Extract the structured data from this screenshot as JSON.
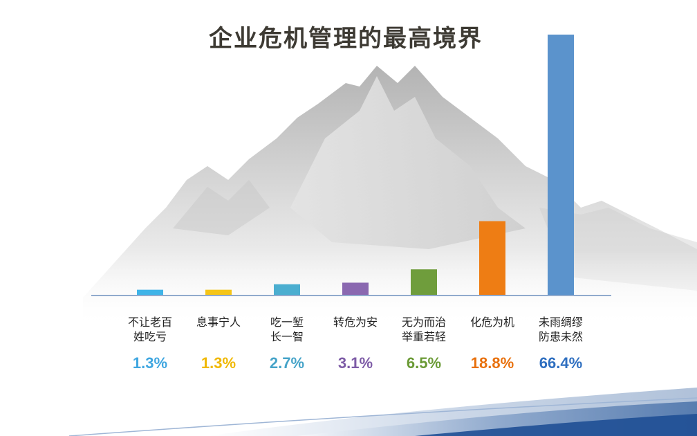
{
  "title": "企业危机管理的最高境界",
  "chart_data": {
    "type": "bar",
    "title": "企业危机管理的最高境界",
    "categories": [
      "不让老百\n姓吃亏",
      "息事宁人",
      "吃一堑\n长一智",
      "转危为安",
      "无为而治\n举重若轻",
      "化危为机",
      "未雨绸缪\n防患未然"
    ],
    "values": [
      1.3,
      1.3,
      2.7,
      3.1,
      6.5,
      18.8,
      66.4
    ],
    "value_labels": [
      "1.3%",
      "1.3%",
      "2.7%",
      "3.1%",
      "6.5%",
      "18.8%",
      "66.4%"
    ],
    "bar_colors": [
      "#3fb4e8",
      "#f5c518",
      "#4baed0",
      "#8a68b0",
      "#6f9d3c",
      "#ee7d14",
      "#5b93cc"
    ],
    "label_colors": [
      "#3fa6e0",
      "#f0b800",
      "#45a3c8",
      "#7d5ba6",
      "#6a9a35",
      "#e8700c",
      "#2f6fc0"
    ],
    "ylim": [
      0,
      66.4
    ],
    "grid": false,
    "legend": "none",
    "xlabel": "",
    "ylabel": ""
  }
}
